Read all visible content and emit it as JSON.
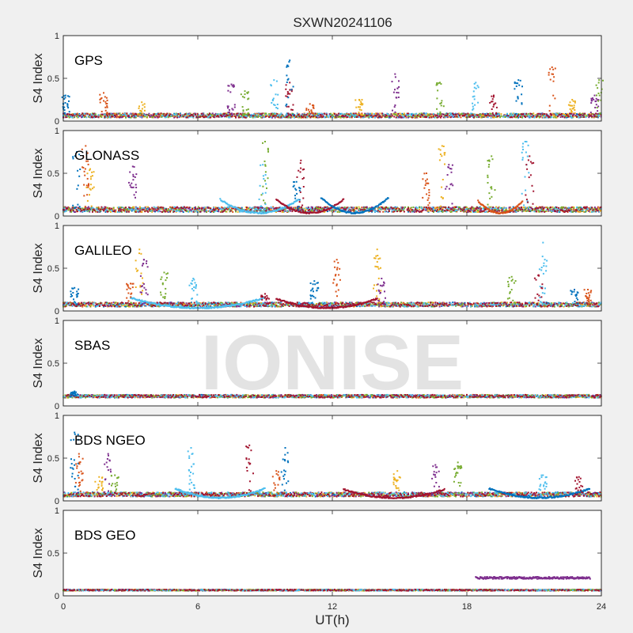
{
  "figure": {
    "title": "SXWN20241106",
    "xlabel": "UT(h)",
    "ylabel": "S4 Index",
    "watermark": "IONISE",
    "x_ticks": [
      "0",
      "6",
      "12",
      "18",
      "24"
    ],
    "y_ticks": [
      "0",
      "0.5",
      "1"
    ]
  },
  "colors": [
    "#0072BD",
    "#D95319",
    "#EDB120",
    "#7E2F8E",
    "#77AC30",
    "#4DBEEE",
    "#A2142F"
  ],
  "chart_data": [
    {
      "type": "scatter",
      "label": "GPS",
      "xlim": [
        0,
        24
      ],
      "ylim": [
        0,
        1
      ],
      "baseline": 0.06,
      "noise": 0.05,
      "spikes": [
        [
          0.1,
          0.3
        ],
        [
          1.8,
          0.33
        ],
        [
          3.5,
          0.22
        ],
        [
          7.5,
          0.43
        ],
        [
          8.1,
          0.35
        ],
        [
          9.4,
          0.48
        ],
        [
          10.1,
          0.45
        ],
        [
          10.1,
          0.71
        ],
        [
          11.0,
          0.2
        ],
        [
          13.2,
          0.25
        ],
        [
          14.8,
          0.55
        ],
        [
          16.8,
          0.45
        ],
        [
          18.4,
          0.45
        ],
        [
          19.2,
          0.3
        ],
        [
          20.3,
          0.48
        ],
        [
          21.8,
          0.63
        ],
        [
          22.7,
          0.25
        ],
        [
          23.7,
          0.3
        ],
        [
          23.9,
          0.48
        ]
      ]
    },
    {
      "type": "scatter",
      "label": "GLONASS",
      "xlim": [
        0,
        24
      ],
      "ylim": [
        0,
        1
      ],
      "baseline": 0.07,
      "noise": 0.06,
      "arcs": [
        [
          7.0,
          10.5,
          0.16
        ],
        [
          9.5,
          12.5,
          0.16
        ],
        [
          11.5,
          14.5,
          0.18
        ],
        [
          18.5,
          20.5,
          0.14
        ]
      ],
      "spikes": [
        [
          0.6,
          0.75
        ],
        [
          1.0,
          0.82
        ],
        [
          1.2,
          0.55
        ],
        [
          3.1,
          0.58
        ],
        [
          9.0,
          0.87
        ],
        [
          8.9,
          0.6
        ],
        [
          10.6,
          0.65
        ],
        [
          10.4,
          0.4
        ],
        [
          16.2,
          0.5
        ],
        [
          16.9,
          0.82
        ],
        [
          17.2,
          0.6
        ],
        [
          19.1,
          0.7
        ],
        [
          20.6,
          0.87
        ],
        [
          20.8,
          0.7
        ]
      ]
    },
    {
      "type": "scatter",
      "label": "GALILEO",
      "xlim": [
        0,
        24
      ],
      "ylim": [
        0,
        1
      ],
      "baseline": 0.07,
      "noise": 0.05,
      "arcs": [
        [
          3.0,
          9.0,
          0.12
        ],
        [
          9.5,
          14.0,
          0.11
        ]
      ],
      "spikes": [
        [
          0.5,
          0.27
        ],
        [
          3.0,
          0.32
        ],
        [
          3.4,
          0.72
        ],
        [
          3.6,
          0.6
        ],
        [
          4.5,
          0.45
        ],
        [
          5.8,
          0.38
        ],
        [
          9.0,
          0.2
        ],
        [
          11.2,
          0.35
        ],
        [
          12.2,
          0.6
        ],
        [
          14.0,
          0.72
        ],
        [
          14.2,
          0.38
        ],
        [
          20.0,
          0.4
        ],
        [
          21.4,
          0.8
        ],
        [
          21.2,
          0.42
        ],
        [
          22.8,
          0.25
        ],
        [
          23.4,
          0.25
        ]
      ]
    },
    {
      "type": "scatter",
      "label": "SBAS",
      "xlim": [
        0,
        24
      ],
      "ylim": [
        0,
        1
      ],
      "baseline": 0.11,
      "noise": 0.035,
      "spikes": [
        [
          0.5,
          0.17
        ]
      ]
    },
    {
      "type": "scatter",
      "label": "BDS NGEO",
      "xlim": [
        0,
        24
      ],
      "ylim": [
        0,
        1
      ],
      "baseline": 0.07,
      "noise": 0.05,
      "arcs": [
        [
          5.0,
          9.0,
          0.11
        ],
        [
          12.5,
          17.0,
          0.1
        ],
        [
          19.0,
          23.5,
          0.11
        ]
      ],
      "spikes": [
        [
          0.5,
          0.8
        ],
        [
          0.7,
          0.55
        ],
        [
          1.6,
          0.28
        ],
        [
          2.0,
          0.55
        ],
        [
          2.3,
          0.3
        ],
        [
          5.7,
          0.62
        ],
        [
          8.3,
          0.65
        ],
        [
          9.9,
          0.62
        ],
        [
          9.5,
          0.35
        ],
        [
          14.9,
          0.35
        ],
        [
          16.6,
          0.42
        ],
        [
          17.6,
          0.45
        ],
        [
          21.4,
          0.3
        ],
        [
          23.0,
          0.28
        ]
      ]
    },
    {
      "type": "scatter",
      "label": "BDS GEO",
      "xlim": [
        0,
        24
      ],
      "ylim": [
        0,
        1
      ],
      "baseline": 0.065,
      "noise": 0.015,
      "segment": {
        "x": [
          18.4,
          23.5
        ],
        "y": 0.21,
        "series_index": 3
      }
    }
  ]
}
